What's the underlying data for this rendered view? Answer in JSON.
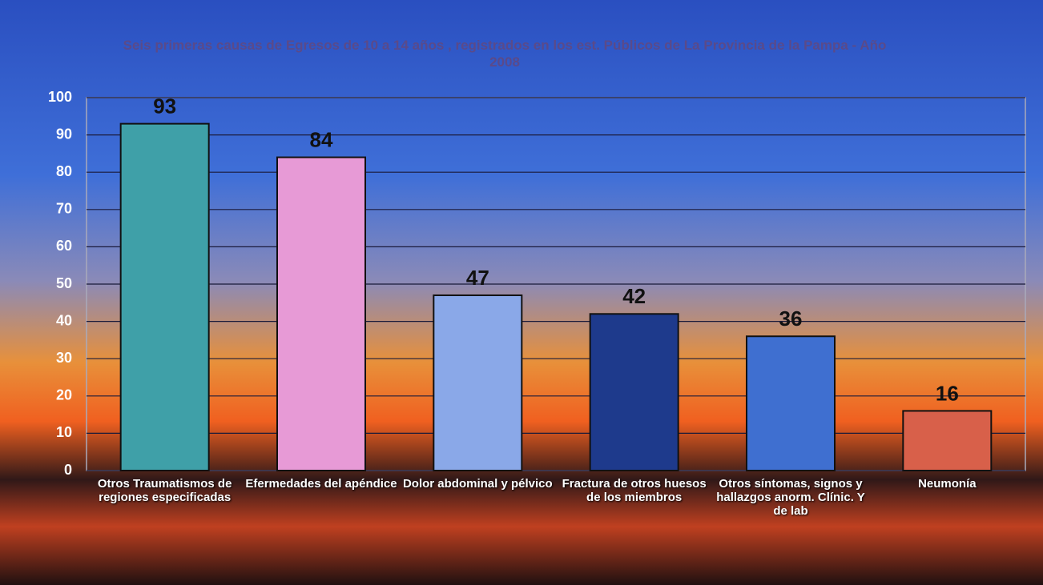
{
  "chart_data": {
    "type": "bar",
    "title": "Seis primeras causas de Egresos de 10 a 14 años , registrados en los est. Públicos de La Provincia de la Pampa - Año 2008",
    "categories": [
      "Otros Traumatismos de regiones especificadas",
      "Efermedades del apéndice",
      "Dolor abdominal y pélvico",
      "Fractura de otros huesos de los miembros",
      "Otros síntomas, signos y hallazgos anorm. Clínic. Y de lab",
      "Neumonía"
    ],
    "values": [
      93,
      84,
      47,
      42,
      36,
      16
    ],
    "colors": [
      "#3fa0a8",
      "#e79ad6",
      "#8aa8e8",
      "#1e3a8c",
      "#3f6fd0",
      "#d8604a"
    ],
    "ylim": [
      0,
      100
    ],
    "yticks": [
      0,
      10,
      20,
      30,
      40,
      50,
      60,
      70,
      80,
      90,
      100
    ],
    "grid": true
  }
}
